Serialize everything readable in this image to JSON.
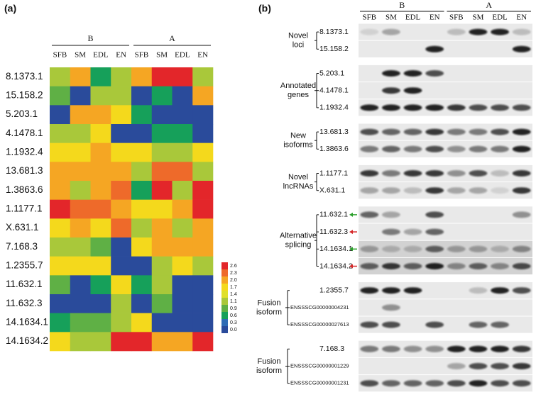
{
  "chart_data": {
    "type": "heatmap",
    "panel_label": "(a)",
    "groups": [
      "B",
      "A"
    ],
    "columns": [
      "SFB",
      "SM",
      "EDL",
      "EN",
      "SFB",
      "SM",
      "EDL",
      "EN"
    ],
    "rows": [
      "8.1373.1",
      "15.158.2",
      "5.203.1",
      "4.1478.1",
      "1.1932.4",
      "13.681.3",
      "1.3863.6",
      "1.1177.1",
      "X.631.1",
      "7.168.3",
      "1.2355.7",
      "11.632.1",
      "11.632.3",
      "14.1634.1",
      "14.1634.2"
    ],
    "values": [
      [
        1.2,
        2.0,
        0.6,
        1.2,
        2.0,
        2.6,
        2.6,
        1.2
      ],
      [
        0.9,
        0.1,
        1.2,
        1.2,
        0.1,
        0.6,
        0.1,
        2.0
      ],
      [
        0.1,
        2.0,
        2.0,
        1.7,
        0.6,
        0.1,
        0.1,
        0.1
      ],
      [
        1.2,
        1.2,
        1.7,
        0.1,
        0.1,
        0.6,
        0.6,
        0.1
      ],
      [
        1.7,
        1.7,
        2.0,
        1.7,
        1.7,
        1.2,
        1.2,
        1.7
      ],
      [
        2.0,
        2.0,
        2.0,
        2.0,
        1.2,
        2.3,
        2.3,
        1.2
      ],
      [
        2.0,
        1.2,
        2.0,
        2.3,
        0.6,
        2.6,
        1.2,
        2.6
      ],
      [
        2.6,
        2.3,
        2.3,
        2.0,
        1.7,
        1.7,
        2.0,
        2.6
      ],
      [
        1.7,
        2.0,
        1.7,
        2.3,
        1.2,
        2.0,
        1.2,
        2.0
      ],
      [
        1.2,
        1.2,
        0.9,
        0.1,
        1.7,
        2.0,
        2.0,
        2.0
      ],
      [
        1.7,
        1.7,
        1.7,
        0.1,
        0.1,
        1.2,
        1.7,
        1.2
      ],
      [
        0.9,
        0.1,
        0.6,
        1.7,
        0.6,
        1.2,
        0.1,
        0.1
      ],
      [
        0.1,
        0.1,
        0.1,
        1.2,
        0.1,
        0.9,
        0.1,
        0.1
      ],
      [
        0.6,
        0.9,
        0.9,
        1.2,
        1.7,
        0.1,
        0.1,
        0.1
      ],
      [
        1.7,
        1.2,
        1.2,
        2.6,
        2.6,
        2.0,
        2.0,
        2.6
      ]
    ],
    "colorbar_ticks": [
      2.6,
      2.3,
      {
        "value": 2,
        "label": "2.0"
      },
      1.7,
      1.4,
      1.1,
      0.9,
      0.6,
      0.3,
      {
        "value": 0,
        "label": "0.0"
      }
    ],
    "colorbar_colors": [
      "#e3262a",
      "#ee6a2a",
      "#f5a623",
      "#f4d91c",
      "#dfe02a",
      "#a9c83a",
      "#5fb045",
      "#16a05a",
      "#2f6cb5",
      "#2a4b9b"
    ]
  },
  "gel_panel": {
    "panel_label": "(b)",
    "groups": [
      "B",
      "A"
    ],
    "lanes": [
      "SFB",
      "SM",
      "EDL",
      "EN",
      "SFB",
      "SM",
      "EDL",
      "EN"
    ],
    "sections": [
      {
        "label_lines": [
          "Novel",
          "loci"
        ],
        "rows": [
          {
            "name": "8.1373.1"
          },
          {
            "name": "15.158.2"
          }
        ]
      },
      {
        "label_lines": [
          "Annotated",
          "genes"
        ],
        "rows": [
          {
            "name": "5.203.1"
          },
          {
            "name": "4.1478.1"
          },
          {
            "name": "1.1932.4"
          }
        ]
      },
      {
        "label_lines": [
          "New",
          "isoforms"
        ],
        "rows": [
          {
            "name": "13.681.3"
          },
          {
            "name": "1.3863.6"
          }
        ]
      },
      {
        "label_lines": [
          "Novel",
          "lncRNAs"
        ],
        "rows": [
          {
            "name": "1.1177.1"
          },
          {
            "name": "X.631.1"
          }
        ]
      },
      {
        "label_lines": [
          "Alternative",
          "splicing"
        ],
        "rows": [
          {
            "name": "11.632.1",
            "arrow_color": "#2ca02c"
          },
          {
            "name": "11.632.3",
            "arrow_color": "#d62728"
          },
          {
            "name": "14.1634.1",
            "arrow_color": "#2ca02c"
          },
          {
            "name": "14.1634.2",
            "arrow_color": "#d62728"
          }
        ]
      },
      {
        "label_lines": [
          "Fusion",
          "isoform"
        ],
        "rows": [
          {
            "name": "1.2355.7"
          },
          {
            "name": "ENSSSCG00000004231"
          },
          {
            "name": "ENSSSCG00000027613"
          }
        ]
      },
      {
        "label_lines": [
          "Fusion",
          "isoform"
        ],
        "rows": [
          {
            "name": "7.168.3"
          },
          {
            "name": "ENSSSCG00000001229"
          },
          {
            "name": "ENSSSCG00000001231"
          }
        ]
      }
    ]
  }
}
